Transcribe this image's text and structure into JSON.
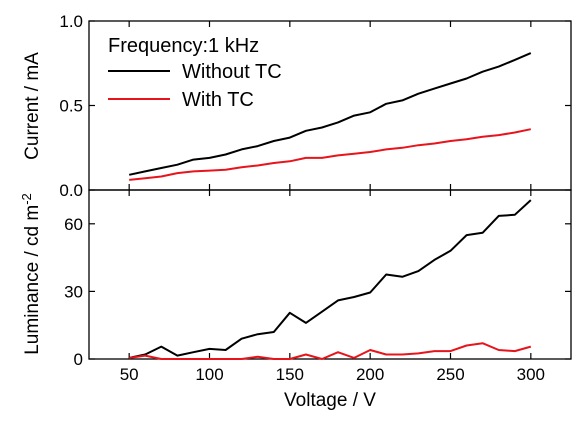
{
  "chart_data": [
    {
      "type": "line",
      "panel": "top",
      "annotation": "Frequency:1 kHz",
      "ylabel": "Current / mA",
      "xlabel": "",
      "xlim": [
        25,
        325
      ],
      "ylim": [
        0,
        1.0
      ],
      "yticks": [
        0.0,
        0.5,
        1.0
      ],
      "ytick_labels": [
        "0.0",
        "0.5",
        "1.0"
      ],
      "legend_placement": "top-left",
      "x": [
        50,
        60,
        70,
        80,
        90,
        100,
        110,
        120,
        130,
        140,
        150,
        160,
        170,
        180,
        190,
        200,
        210,
        220,
        230,
        240,
        250,
        260,
        270,
        280,
        290,
        300
      ],
      "series": [
        {
          "name": "Without TC",
          "color": "#000000",
          "values": [
            0.09,
            0.11,
            0.13,
            0.15,
            0.18,
            0.19,
            0.21,
            0.24,
            0.26,
            0.29,
            0.31,
            0.35,
            0.37,
            0.4,
            0.44,
            0.46,
            0.51,
            0.53,
            0.57,
            0.6,
            0.63,
            0.66,
            0.7,
            0.73,
            0.77,
            0.81
          ]
        },
        {
          "name": "With TC",
          "color": "#e8141c",
          "values": [
            0.06,
            0.07,
            0.08,
            0.1,
            0.11,
            0.115,
            0.12,
            0.135,
            0.145,
            0.16,
            0.17,
            0.19,
            0.19,
            0.205,
            0.215,
            0.225,
            0.24,
            0.25,
            0.265,
            0.275,
            0.29,
            0.3,
            0.315,
            0.325,
            0.34,
            0.36
          ]
        }
      ]
    },
    {
      "type": "line",
      "panel": "bottom",
      "ylabel": "Luminance / cd m",
      "ylabel_exponent": "-2",
      "xlabel": "Voltage / V",
      "xlim": [
        25,
        325
      ],
      "ylim": [
        0,
        75
      ],
      "xticks": [
        50,
        100,
        150,
        200,
        250,
        300
      ],
      "xtick_labels": [
        "50",
        "100",
        "150",
        "200",
        "250",
        "300"
      ],
      "yticks": [
        0,
        30,
        60
      ],
      "ytick_labels": [
        "0",
        "30",
        "60"
      ],
      "x": [
        50,
        60,
        70,
        80,
        90,
        100,
        110,
        120,
        130,
        140,
        150,
        160,
        170,
        180,
        190,
        200,
        210,
        220,
        230,
        240,
        250,
        260,
        270,
        280,
        290,
        300
      ],
      "series": [
        {
          "name": "Without TC",
          "color": "#000000",
          "values": [
            0.5,
            2,
            5.5,
            1.5,
            3,
            4.5,
            4,
            9,
            11,
            12,
            20.5,
            16,
            21,
            26,
            27.5,
            29.5,
            37.5,
            36.5,
            39,
            44,
            48,
            55,
            56,
            63.5,
            64,
            70.5
          ]
        },
        {
          "name": "With TC",
          "color": "#e8141c",
          "values": [
            0.5,
            1.5,
            0,
            0,
            0,
            0,
            0,
            0,
            1,
            0,
            0,
            2,
            0,
            3,
            0.5,
            4,
            2,
            2,
            2.5,
            3.5,
            3.5,
            6,
            7,
            4,
            3.5,
            5.5
          ]
        }
      ]
    }
  ]
}
